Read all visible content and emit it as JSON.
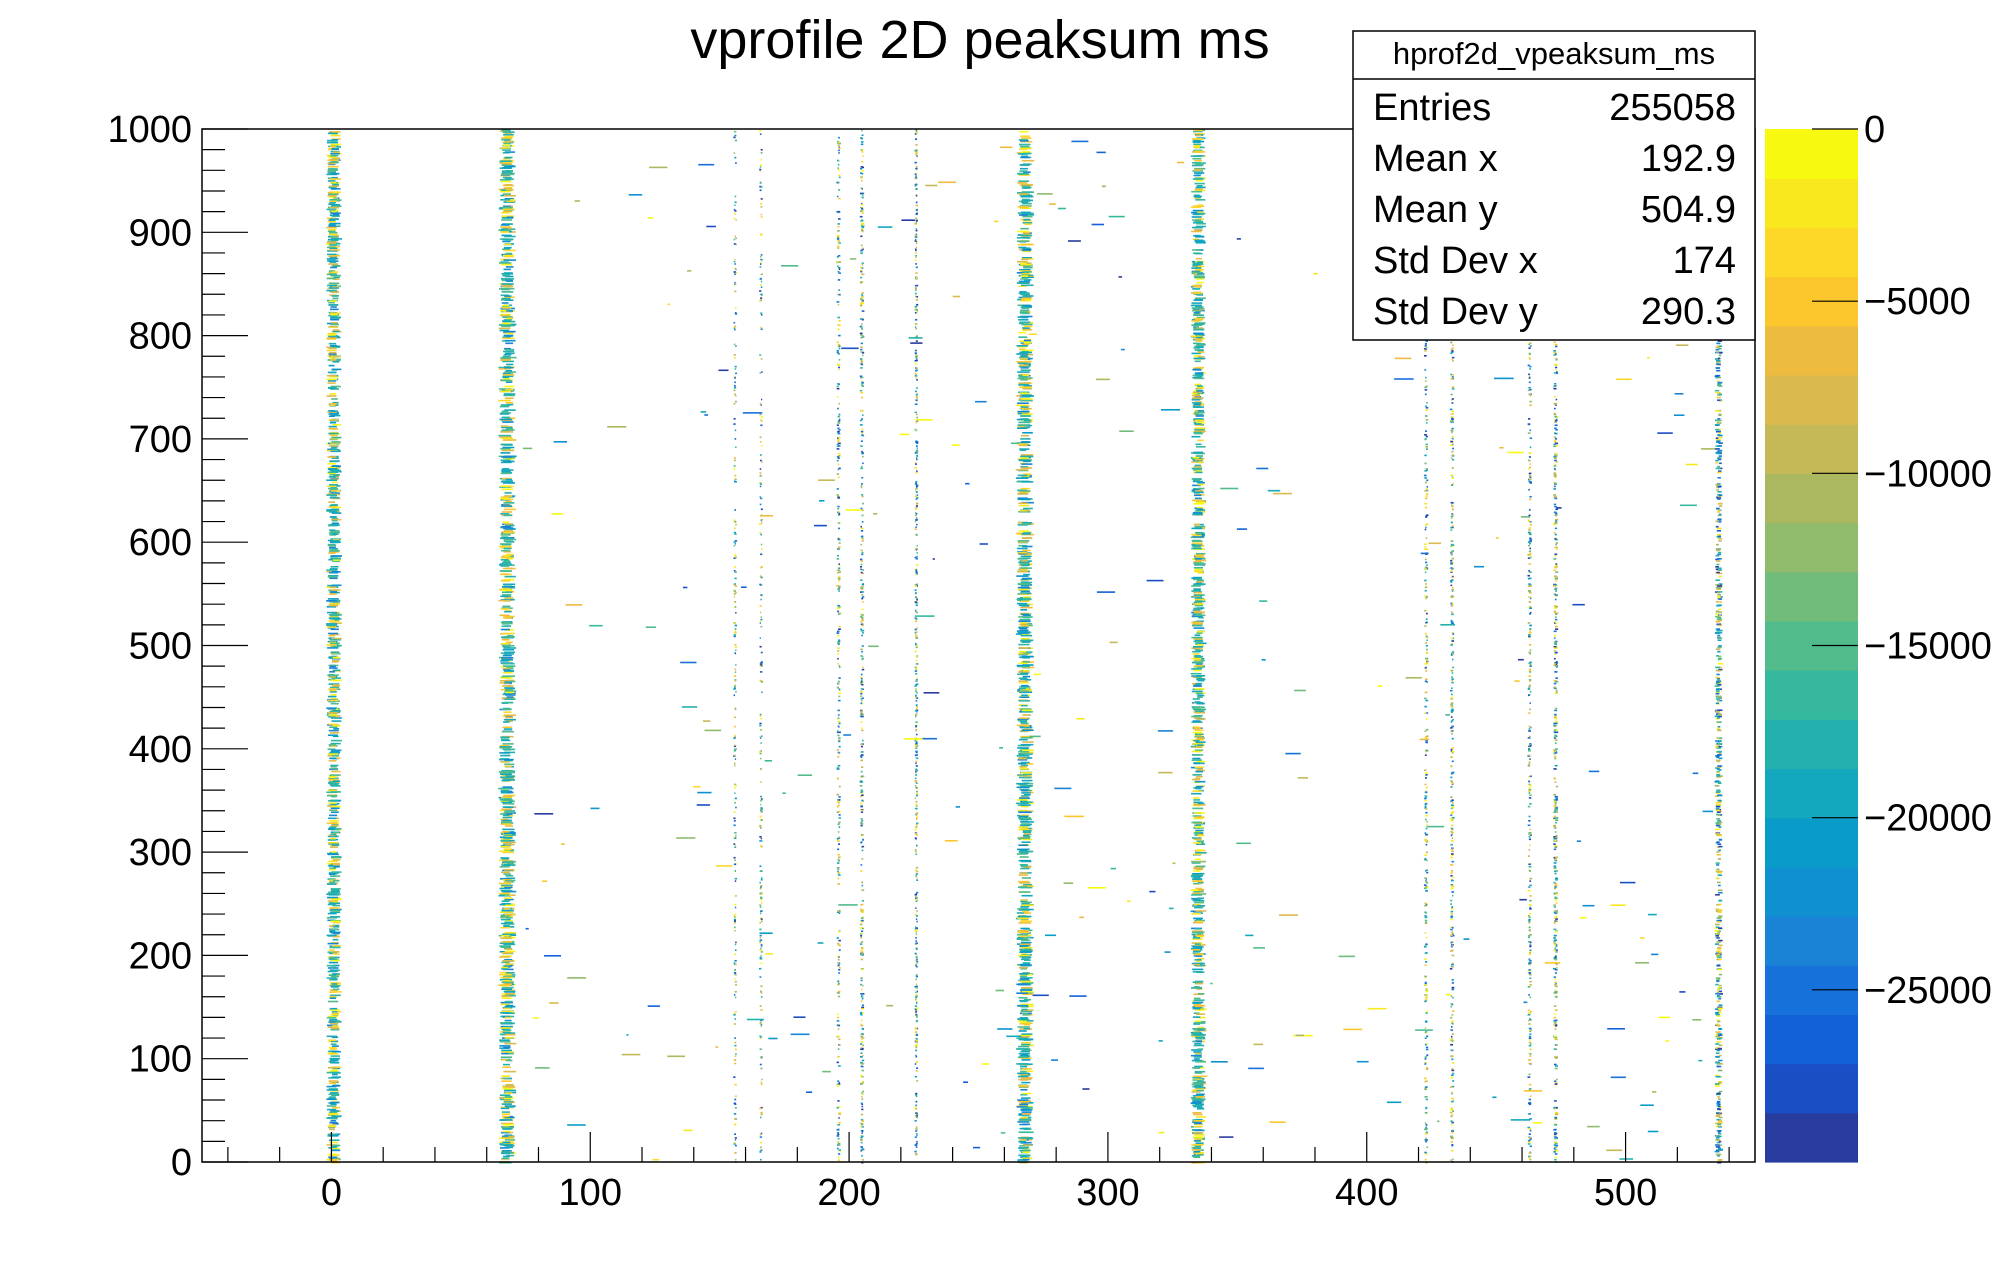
{
  "chart_data": {
    "type": "heatmap",
    "title": "vprofile 2D peaksum ms",
    "xlabel": "",
    "ylabel": "",
    "xlim": [
      -50,
      550
    ],
    "ylim": [
      0,
      1000
    ],
    "x_ticks": [
      0,
      100,
      200,
      300,
      400,
      500
    ],
    "y_ticks": [
      0,
      100,
      200,
      300,
      400,
      500,
      600,
      700,
      800,
      900,
      1000
    ],
    "z_range": [
      -30000,
      0
    ],
    "z_ticks": [
      0,
      -5000,
      -10000,
      -15000,
      -20000,
      -25000
    ],
    "z_tick_labels": [
      "0",
      "−5000",
      "−10000",
      "−15000",
      "−20000",
      "−25000"
    ],
    "palette": [
      "#283c9e",
      "#1a4ec4",
      "#1261d6",
      "#1671db",
      "#1a83d6",
      "#0f90d0",
      "#0a9cc8",
      "#13a8bd",
      "#24b1ae",
      "#35b89e",
      "#52bb8c",
      "#72bc7b",
      "#90bb6d",
      "#acb85f",
      "#c5b957",
      "#dab94f",
      "#edbb3f",
      "#fbc72d",
      "#fdd829",
      "#f9e81e",
      "#f8f910"
    ],
    "columns": [
      {
        "x": 1,
        "density": 0.95,
        "width": 3.5
      },
      {
        "x": 68,
        "density": 0.95,
        "width": 4.0
      },
      {
        "x": 156,
        "density": 0.25,
        "width": 1.2
      },
      {
        "x": 166,
        "density": 0.25,
        "width": 1.2
      },
      {
        "x": 196,
        "density": 0.35,
        "width": 1.4
      },
      {
        "x": 205,
        "density": 0.45,
        "width": 1.4
      },
      {
        "x": 226,
        "density": 0.55,
        "width": 1.2
      },
      {
        "x": 268,
        "density": 0.95,
        "width": 4.0
      },
      {
        "x": 335,
        "density": 0.95,
        "width": 3.5
      },
      {
        "x": 423,
        "density": 0.35,
        "width": 1.4
      },
      {
        "x": 433,
        "density": 0.45,
        "width": 1.4
      },
      {
        "x": 463,
        "density": 0.4,
        "width": 1.4
      },
      {
        "x": 473,
        "density": 0.55,
        "width": 1.6
      },
      {
        "x": 536,
        "density": 0.75,
        "width": 2.5
      }
    ]
  },
  "stats": {
    "name": "hprof2d_vpeaksum_ms",
    "rows": [
      {
        "label": "Entries",
        "value": "255058"
      },
      {
        "label": "Mean x",
        "value": "192.9"
      },
      {
        "label": "Mean y",
        "value": "504.9"
      },
      {
        "label": "Std Dev x",
        "value": "174"
      },
      {
        "label": "Std Dev y",
        "value": "290.3"
      }
    ]
  }
}
